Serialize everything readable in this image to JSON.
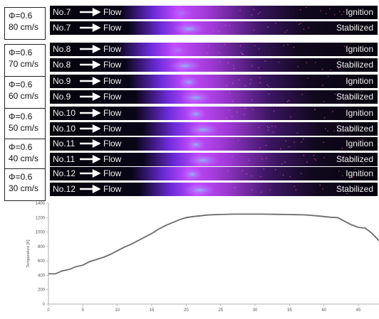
{
  "flow_label": "Flow",
  "groups": [
    {
      "phi": "Φ=0.6",
      "velocity": "80 cm/s",
      "rows": [
        {
          "no": "No.7",
          "stage": "Ignition"
        },
        {
          "no": "No.7",
          "stage": "Stabilized"
        }
      ]
    },
    {
      "phi": "Φ=0.6",
      "velocity": "70 cm/s",
      "rows": [
        {
          "no": "No.8",
          "stage": "Ignition"
        },
        {
          "no": "No.8",
          "stage": "Stabilized"
        }
      ]
    },
    {
      "phi": "Φ=0.6",
      "velocity": "60 cm/s",
      "rows": [
        {
          "no": "No.9",
          "stage": "Ignition"
        },
        {
          "no": "No.9",
          "stage": "Stabilized"
        }
      ]
    },
    {
      "phi": "Φ=0.6",
      "velocity": "50 cm/s",
      "rows": [
        {
          "no": "No.10",
          "stage": "Ignition"
        },
        {
          "no": "No.10",
          "stage": "Stabilized"
        }
      ]
    },
    {
      "phi": "Φ=0.6",
      "velocity": "40 cm/s",
      "rows": [
        {
          "no": "No.11",
          "stage": "Ignition"
        },
        {
          "no": "No.11",
          "stage": "Stabilized"
        }
      ]
    },
    {
      "phi": "Φ=0.6",
      "velocity": "30 cm/s",
      "rows": [
        {
          "no": "No.12",
          "stage": "Ignition"
        },
        {
          "no": "No.12",
          "stage": "Stabilized"
        }
      ]
    }
  ],
  "chart_data": {
    "type": "line",
    "title": "",
    "xlabel": "",
    "ylabel": "Temperature [K]",
    "xlim": [
      0,
      48
    ],
    "ylim": [
      0,
      1400
    ],
    "xticks": [
      0,
      5,
      10,
      15,
      20,
      25,
      30,
      35,
      40,
      45
    ],
    "yticks": [
      0,
      200,
      400,
      600,
      800,
      1000,
      1200,
      1400
    ],
    "grid": false,
    "series": [
      {
        "color": "#6b6b6b",
        "x": [
          0,
          1,
          2,
          3,
          4,
          5,
          6,
          7,
          8,
          9,
          10,
          11,
          12,
          13,
          14,
          15,
          16,
          17,
          18,
          19,
          20,
          21,
          22,
          23,
          24,
          25,
          26,
          27,
          28,
          29,
          30,
          31,
          32,
          33,
          34,
          35,
          36,
          37,
          38,
          39,
          40,
          41,
          42,
          43,
          44,
          45,
          46,
          47,
          48
        ],
        "values": [
          420,
          420,
          460,
          480,
          520,
          540,
          590,
          620,
          650,
          690,
          740,
          790,
          830,
          880,
          930,
          980,
          1040,
          1090,
          1130,
          1170,
          1200,
          1215,
          1225,
          1235,
          1240,
          1243,
          1246,
          1248,
          1248,
          1248,
          1248,
          1248,
          1247,
          1245,
          1244,
          1242,
          1240,
          1238,
          1232,
          1225,
          1215,
          1205,
          1200,
          1150,
          1100,
          1065,
          1055,
          980,
          880
        ]
      }
    ]
  },
  "colors": {
    "strip_bg": "#06040c",
    "flame_core": "#7fd3ff",
    "flame_mid": "#c44bff",
    "flame_outer": "#6a2bd8",
    "sparks": "#ff6fae"
  }
}
